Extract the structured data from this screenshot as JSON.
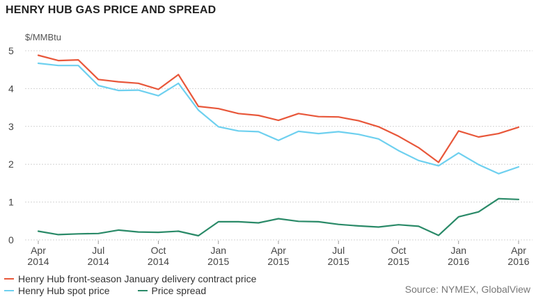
{
  "chart_data": {
    "type": "line",
    "title": "HENRY HUB GAS PRICE AND SPREAD",
    "ylabel": "$/MMBtu",
    "ylim": [
      0,
      5
    ],
    "yticks": [
      0,
      1,
      2,
      3,
      4,
      5
    ],
    "grid": true,
    "legend_position": "bottom-left",
    "source": "Source: NYMEX, GlobalView",
    "x_months": [
      "2014-04",
      "2014-05",
      "2014-06",
      "2014-07",
      "2014-08",
      "2014-09",
      "2014-10",
      "2014-11",
      "2014-12",
      "2015-01",
      "2015-02",
      "2015-03",
      "2015-04",
      "2015-05",
      "2015-06",
      "2015-07",
      "2015-08",
      "2015-09",
      "2015-10",
      "2015-11",
      "2015-12",
      "2016-01",
      "2016-02",
      "2016-03",
      "2016-04"
    ],
    "xticks": [
      {
        "month": "2014-04",
        "line1": "Apr",
        "line2": "2014"
      },
      {
        "month": "2014-07",
        "line1": "Jul",
        "line2": "2014"
      },
      {
        "month": "2014-10",
        "line1": "Oct",
        "line2": "2014"
      },
      {
        "month": "2015-01",
        "line1": "Jan",
        "line2": "2015"
      },
      {
        "month": "2015-04",
        "line1": "Apr",
        "line2": "2015"
      },
      {
        "month": "2015-07",
        "line1": "Jul",
        "line2": "2015"
      },
      {
        "month": "2015-10",
        "line1": "Oct",
        "line2": "2015"
      },
      {
        "month": "2016-01",
        "line1": "Jan",
        "line2": "2016"
      },
      {
        "month": "2016-04",
        "line1": "Apr",
        "line2": "2016"
      }
    ],
    "series": [
      {
        "name": "Henry Hub front-season January delivery contract price",
        "color": "#e8573a",
        "values": [
          4.88,
          4.74,
          4.76,
          4.24,
          4.18,
          4.14,
          3.98,
          4.37,
          3.53,
          3.47,
          3.34,
          3.29,
          3.16,
          3.34,
          3.26,
          3.25,
          3.15,
          2.99,
          2.74,
          2.44,
          2.05,
          2.88,
          2.72,
          2.81,
          2.98
        ]
      },
      {
        "name": "Henry Hub spot price",
        "color": "#6ed0ef",
        "values": [
          4.67,
          4.61,
          4.61,
          4.08,
          3.95,
          3.96,
          3.81,
          4.14,
          3.43,
          2.99,
          2.88,
          2.86,
          2.63,
          2.87,
          2.81,
          2.86,
          2.79,
          2.67,
          2.36,
          2.1,
          1.96,
          2.3,
          1.99,
          1.75,
          1.93
        ]
      },
      {
        "name": "Price spread",
        "color": "#2a8a68",
        "values": [
          0.23,
          0.14,
          0.16,
          0.17,
          0.26,
          0.21,
          0.2,
          0.23,
          0.11,
          0.48,
          0.48,
          0.45,
          0.56,
          0.49,
          0.48,
          0.41,
          0.37,
          0.34,
          0.4,
          0.36,
          0.12,
          0.61,
          0.74,
          1.09,
          1.07
        ]
      }
    ]
  }
}
